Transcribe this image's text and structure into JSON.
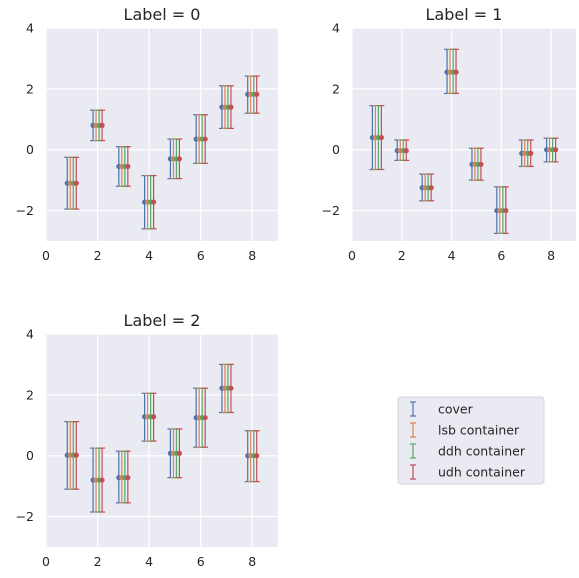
{
  "series_colors": [
    "#4c72b0",
    "#dd8452",
    "#55a868",
    "#c44e52"
  ],
  "legend": {
    "placement": "lower-right",
    "entries": [
      "cover",
      "lsb container",
      "ddh container",
      "udh container"
    ]
  },
  "chart_data": [
    {
      "type": "errorbar",
      "title": "Label = 0",
      "xlabel": "",
      "ylabel": "",
      "xlim": [
        0,
        9
      ],
      "ylim": [
        -3,
        4
      ],
      "xticks": [
        0,
        2,
        4,
        6,
        8
      ],
      "yticks": [
        -2,
        0,
        2,
        4
      ],
      "grid": true,
      "x": [
        1,
        2,
        3,
        4,
        5,
        6,
        7,
        8
      ],
      "series": [
        {
          "name": "cover",
          "values": [
            -1.1,
            0.8,
            -0.55,
            -1.72,
            -0.3,
            0.35,
            1.4,
            1.82
          ],
          "lower": [
            -1.95,
            0.3,
            -1.2,
            -2.6,
            -0.95,
            -0.45,
            0.7,
            1.2
          ],
          "upper": [
            -0.25,
            1.3,
            0.1,
            -0.85,
            0.35,
            1.15,
            2.1,
            2.42
          ]
        },
        {
          "name": "lsb container",
          "values": [
            -1.1,
            0.8,
            -0.55,
            -1.72,
            -0.3,
            0.35,
            1.4,
            1.82
          ],
          "lower": [
            -1.95,
            0.3,
            -1.2,
            -2.6,
            -0.95,
            -0.45,
            0.7,
            1.2
          ],
          "upper": [
            -0.25,
            1.3,
            0.1,
            -0.85,
            0.35,
            1.15,
            2.1,
            2.42
          ]
        },
        {
          "name": "ddh container",
          "values": [
            -1.1,
            0.8,
            -0.55,
            -1.72,
            -0.3,
            0.35,
            1.4,
            1.82
          ],
          "lower": [
            -1.95,
            0.3,
            -1.2,
            -2.6,
            -0.95,
            -0.45,
            0.7,
            1.2
          ],
          "upper": [
            -0.25,
            1.3,
            0.1,
            -0.85,
            0.35,
            1.15,
            2.1,
            2.42
          ]
        },
        {
          "name": "udh container",
          "values": [
            -1.1,
            0.8,
            -0.55,
            -1.72,
            -0.3,
            0.35,
            1.4,
            1.82
          ],
          "lower": [
            -1.95,
            0.3,
            -1.2,
            -2.6,
            -0.95,
            -0.45,
            0.7,
            1.2
          ],
          "upper": [
            -0.25,
            1.3,
            0.1,
            -0.85,
            0.35,
            1.15,
            2.1,
            2.42
          ]
        }
      ]
    },
    {
      "type": "errorbar",
      "title": "Label = 1",
      "xlabel": "",
      "ylabel": "",
      "xlim": [
        0,
        9
      ],
      "ylim": [
        -3,
        4
      ],
      "xticks": [
        0,
        2,
        4,
        6,
        8
      ],
      "yticks": [
        -2,
        0,
        2,
        4
      ],
      "grid": true,
      "x": [
        1,
        2,
        3,
        4,
        5,
        6,
        7,
        8
      ],
      "series": [
        {
          "name": "cover",
          "values": [
            0.4,
            -0.03,
            -1.25,
            2.55,
            -0.48,
            -2.0,
            -0.12,
            0.0
          ],
          "lower": [
            -0.65,
            -0.35,
            -1.68,
            1.85,
            -1.0,
            -2.75,
            -0.55,
            -0.4
          ],
          "upper": [
            1.45,
            0.32,
            -0.8,
            3.3,
            0.05,
            -1.22,
            0.32,
            0.38
          ]
        },
        {
          "name": "lsb container",
          "values": [
            0.4,
            -0.03,
            -1.25,
            2.55,
            -0.48,
            -2.0,
            -0.12,
            0.0
          ],
          "lower": [
            -0.65,
            -0.35,
            -1.68,
            1.85,
            -1.0,
            -2.75,
            -0.55,
            -0.4
          ],
          "upper": [
            1.45,
            0.32,
            -0.8,
            3.3,
            0.05,
            -1.22,
            0.32,
            0.38
          ]
        },
        {
          "name": "ddh container",
          "values": [
            0.4,
            -0.03,
            -1.25,
            2.55,
            -0.48,
            -2.0,
            -0.12,
            0.0
          ],
          "lower": [
            -0.65,
            -0.35,
            -1.68,
            1.85,
            -1.0,
            -2.75,
            -0.55,
            -0.4
          ],
          "upper": [
            1.45,
            0.32,
            -0.8,
            3.3,
            0.05,
            -1.22,
            0.32,
            0.38
          ]
        },
        {
          "name": "udh container",
          "values": [
            0.4,
            -0.03,
            -1.25,
            2.55,
            -0.48,
            -2.0,
            -0.12,
            0.0
          ],
          "lower": [
            -0.65,
            -0.35,
            -1.68,
            1.85,
            -1.0,
            -2.75,
            -0.55,
            -0.4
          ],
          "upper": [
            1.45,
            0.32,
            -0.8,
            3.3,
            0.05,
            -1.22,
            0.32,
            0.38
          ]
        }
      ]
    },
    {
      "type": "errorbar",
      "title": "Label = 2",
      "xlabel": "",
      "ylabel": "",
      "xlim": [
        0,
        9
      ],
      "ylim": [
        -3,
        4
      ],
      "xticks": [
        0,
        2,
        4,
        6,
        8
      ],
      "yticks": [
        -2,
        0,
        2,
        4
      ],
      "grid": true,
      "x": [
        1,
        2,
        3,
        4,
        5,
        6,
        7,
        8
      ],
      "series": [
        {
          "name": "cover",
          "values": [
            0.02,
            -0.8,
            -0.72,
            1.28,
            0.08,
            1.25,
            2.22,
            0.0
          ],
          "lower": [
            -1.1,
            -1.85,
            -1.55,
            0.48,
            -0.72,
            0.28,
            1.42,
            -0.85
          ],
          "upper": [
            1.12,
            0.25,
            0.15,
            2.05,
            0.88,
            2.22,
            3.0,
            0.82
          ]
        },
        {
          "name": "lsb container",
          "values": [
            0.02,
            -0.8,
            -0.72,
            1.28,
            0.08,
            1.25,
            2.22,
            0.0
          ],
          "lower": [
            -1.1,
            -1.85,
            -1.55,
            0.48,
            -0.72,
            0.28,
            1.42,
            -0.85
          ],
          "upper": [
            1.12,
            0.25,
            0.15,
            2.05,
            0.88,
            2.22,
            3.0,
            0.82
          ]
        },
        {
          "name": "ddh container",
          "values": [
            0.02,
            -0.8,
            -0.72,
            1.28,
            0.08,
            1.25,
            2.22,
            0.0
          ],
          "lower": [
            -1.1,
            -1.85,
            -1.55,
            0.48,
            -0.72,
            0.28,
            1.42,
            -0.85
          ],
          "upper": [
            1.12,
            0.25,
            0.15,
            2.05,
            0.88,
            2.22,
            3.0,
            0.82
          ]
        },
        {
          "name": "udh container",
          "values": [
            0.02,
            -0.8,
            -0.72,
            1.28,
            0.08,
            1.25,
            2.22,
            0.0
          ],
          "lower": [
            -1.1,
            -1.85,
            -1.55,
            0.48,
            -0.72,
            0.28,
            1.42,
            -0.85
          ],
          "upper": [
            1.12,
            0.25,
            0.15,
            2.05,
            0.88,
            2.22,
            3.0,
            0.82
          ]
        }
      ]
    }
  ]
}
